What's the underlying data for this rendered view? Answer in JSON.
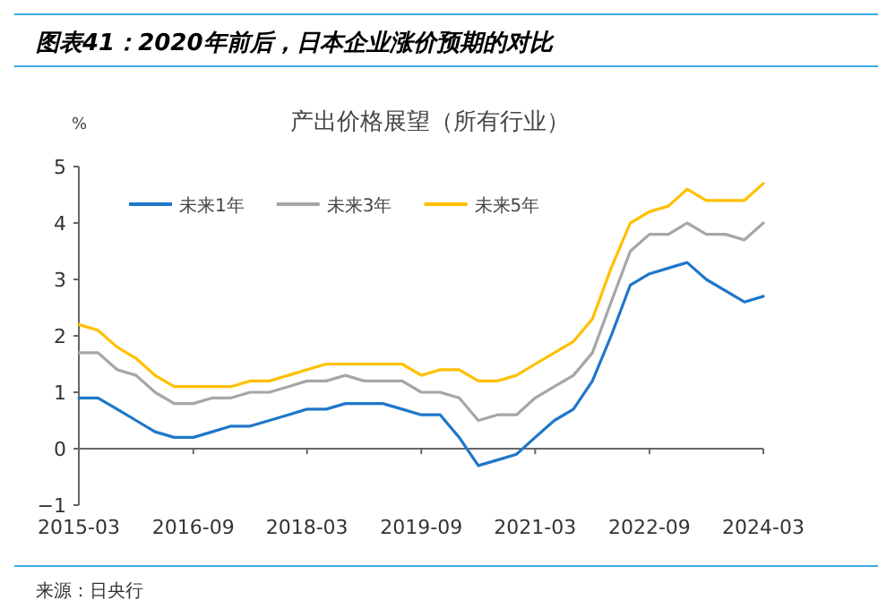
{
  "chart_data": {
    "type": "line",
    "title": "图表41：2020年前后，日本企业涨价预期的对比",
    "subtitle": "产出价格展望（所有行业）",
    "ylabel": "%",
    "x": [
      "2015-03",
      "2015-06",
      "2015-09",
      "2015-12",
      "2016-03",
      "2016-06",
      "2016-09",
      "2016-12",
      "2017-03",
      "2017-06",
      "2017-09",
      "2017-12",
      "2018-03",
      "2018-06",
      "2018-09",
      "2018-12",
      "2019-03",
      "2019-06",
      "2019-09",
      "2019-12",
      "2020-03",
      "2020-06",
      "2020-09",
      "2020-12",
      "2021-03",
      "2021-06",
      "2021-09",
      "2021-12",
      "2022-03",
      "2022-06",
      "2022-09",
      "2022-12",
      "2023-03",
      "2023-06",
      "2023-09",
      "2023-12",
      "2024-03"
    ],
    "series": [
      {
        "name": "未来1年",
        "color": "#1f77c9",
        "values": [
          0.9,
          0.9,
          0.7,
          0.5,
          0.3,
          0.2,
          0.2,
          0.3,
          0.4,
          0.4,
          0.5,
          0.6,
          0.7,
          0.7,
          0.8,
          0.8,
          0.8,
          0.7,
          0.6,
          0.6,
          0.2,
          -0.3,
          -0.2,
          -0.1,
          0.2,
          0.5,
          0.7,
          1.2,
          2.0,
          2.9,
          3.1,
          3.2,
          3.3,
          3.0,
          2.8,
          2.6,
          2.7
        ]
      },
      {
        "name": "未来3年",
        "color": "#a6a6a6",
        "values": [
          1.7,
          1.7,
          1.4,
          1.3,
          1.0,
          0.8,
          0.8,
          0.9,
          0.9,
          1.0,
          1.0,
          1.1,
          1.2,
          1.2,
          1.3,
          1.2,
          1.2,
          1.2,
          1.0,
          1.0,
          0.9,
          0.5,
          0.6,
          0.6,
          0.9,
          1.1,
          1.3,
          1.7,
          2.6,
          3.5,
          3.8,
          3.8,
          4.0,
          3.8,
          3.8,
          3.7,
          4.0
        ]
      },
      {
        "name": "未来5年",
        "color": "#ffc000",
        "values": [
          2.2,
          2.1,
          1.8,
          1.6,
          1.3,
          1.1,
          1.1,
          1.1,
          1.1,
          1.2,
          1.2,
          1.3,
          1.4,
          1.5,
          1.5,
          1.5,
          1.5,
          1.5,
          1.3,
          1.4,
          1.4,
          1.2,
          1.2,
          1.3,
          1.5,
          1.7,
          1.9,
          2.3,
          3.2,
          4.0,
          4.2,
          4.3,
          4.6,
          4.4,
          4.4,
          4.4,
          4.7
        ]
      }
    ],
    "xlim": [
      "2015-03",
      "2024-03"
    ],
    "xticks": [
      "2015-03",
      "2016-09",
      "2018-03",
      "2019-09",
      "2021-03",
      "2022-09",
      "2024-03"
    ],
    "ylim": [
      -1,
      5
    ],
    "yticks": [
      -1,
      0,
      1,
      2,
      3,
      4,
      5
    ],
    "legend": "top left",
    "marker": "none",
    "line_style": "solid",
    "annotations": [
      "来源：日央行"
    ]
  }
}
